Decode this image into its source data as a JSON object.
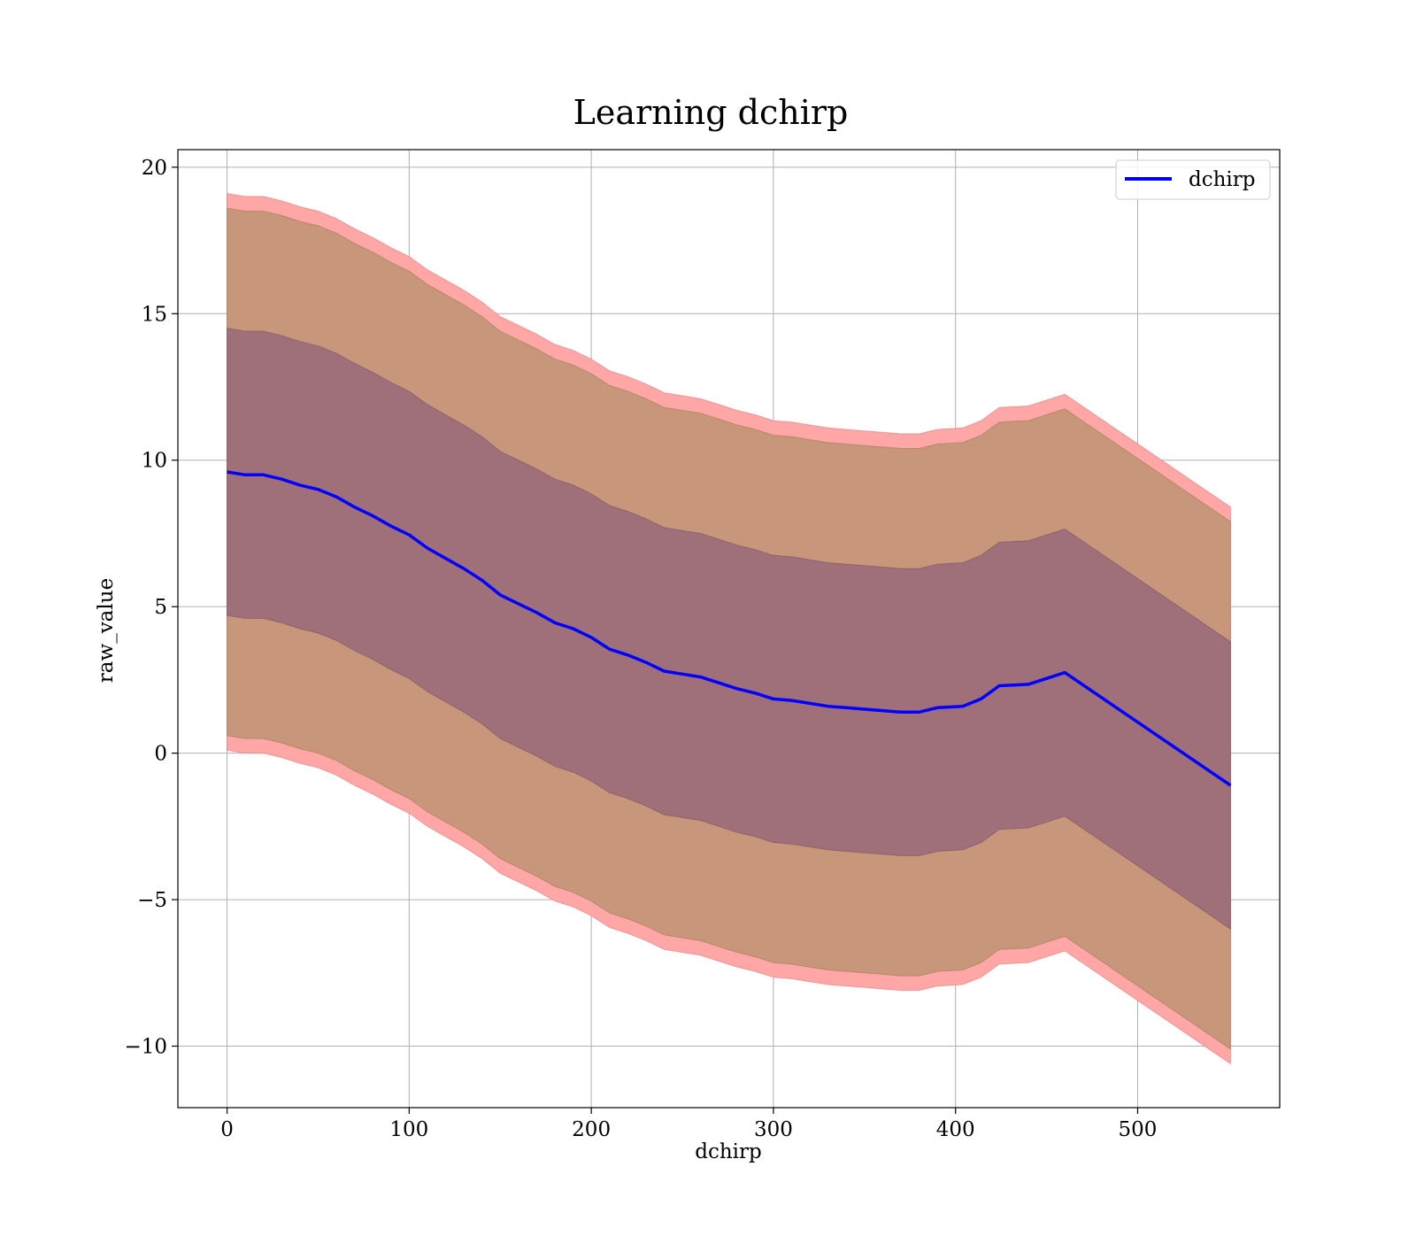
{
  "chart_data": {
    "type": "line",
    "title": "Learning dchirp",
    "xlabel": "dchirp",
    "ylabel": "raw_value",
    "xlim": [
      -27,
      578
    ],
    "ylim": [
      -12.1,
      20.6
    ],
    "x_ticks": [
      0,
      100,
      200,
      300,
      400,
      500
    ],
    "x_tick_labels": [
      "0",
      "100",
      "200",
      "300",
      "400",
      "500"
    ],
    "y_ticks": [
      -10,
      -5,
      0,
      5,
      10,
      15,
      20
    ],
    "y_tick_labels": [
      "−10",
      "−5",
      "0",
      "5",
      "10",
      "15",
      "20"
    ],
    "grid": true,
    "legend": {
      "position": "top-right",
      "entries": [
        "dchirp"
      ]
    },
    "colors": {
      "line": "#0000ff",
      "band_outer": "#ffa6a6",
      "band_mid": "#c8967a",
      "band_inner": "#a0707a"
    },
    "x": [
      0,
      10,
      20,
      30,
      40,
      50,
      60,
      70,
      80,
      90,
      100,
      110,
      120,
      130,
      140,
      150,
      160,
      170,
      180,
      190,
      200,
      210,
      220,
      230,
      240,
      250,
      260,
      270,
      280,
      290,
      300,
      310,
      320,
      330,
      340,
      350,
      360,
      370,
      380,
      390,
      404,
      414,
      424,
      440,
      460,
      551
    ],
    "series": [
      {
        "name": "dchirp",
        "values": [
          9.6,
          9.5,
          9.5,
          9.35,
          9.15,
          9.0,
          8.75,
          8.4,
          8.1,
          7.75,
          7.45,
          7.0,
          6.65,
          6.3,
          5.9,
          5.4,
          5.1,
          4.8,
          4.45,
          4.25,
          3.95,
          3.55,
          3.35,
          3.1,
          2.8,
          2.7,
          2.6,
          2.4,
          2.2,
          2.05,
          1.85,
          1.8,
          1.7,
          1.6,
          1.55,
          1.5,
          1.45,
          1.4,
          1.4,
          1.55,
          1.6,
          1.85,
          2.3,
          2.35,
          2.75,
          -1.1
        ]
      }
    ],
    "bands": [
      {
        "upper": [
          19.1,
          19.0,
          19.0,
          18.85,
          18.65,
          18.5,
          18.25,
          17.9,
          17.6,
          17.25,
          16.95,
          16.5,
          16.15,
          15.8,
          15.4,
          14.9,
          14.6,
          14.3,
          13.95,
          13.75,
          13.45,
          13.05,
          12.85,
          12.6,
          12.3,
          12.2,
          12.1,
          11.9,
          11.7,
          11.55,
          11.35,
          11.3,
          11.2,
          11.1,
          11.05,
          11.0,
          10.95,
          10.9,
          10.9,
          11.05,
          11.1,
          11.35,
          11.8,
          11.85,
          12.25,
          8.4
        ],
        "lower": [
          0.1,
          0.0,
          0.0,
          -0.15,
          -0.35,
          -0.5,
          -0.75,
          -1.1,
          -1.4,
          -1.75,
          -2.05,
          -2.5,
          -2.85,
          -3.2,
          -3.6,
          -4.1,
          -4.4,
          -4.7,
          -5.05,
          -5.25,
          -5.55,
          -5.95,
          -6.15,
          -6.4,
          -6.7,
          -6.8,
          -6.9,
          -7.1,
          -7.3,
          -7.45,
          -7.65,
          -7.7,
          -7.8,
          -7.9,
          -7.95,
          -8.0,
          -8.05,
          -8.1,
          -8.1,
          -7.95,
          -7.9,
          -7.65,
          -7.2,
          -7.15,
          -6.75,
          -10.6
        ]
      },
      {
        "upper": [
          18.6,
          18.5,
          18.5,
          18.35,
          18.15,
          18.0,
          17.75,
          17.4,
          17.1,
          16.75,
          16.45,
          16.0,
          15.65,
          15.3,
          14.9,
          14.4,
          14.1,
          13.8,
          13.45,
          13.25,
          12.95,
          12.55,
          12.35,
          12.1,
          11.8,
          11.7,
          11.6,
          11.4,
          11.2,
          11.05,
          10.85,
          10.8,
          10.7,
          10.6,
          10.55,
          10.5,
          10.45,
          10.4,
          10.4,
          10.55,
          10.6,
          10.85,
          11.3,
          11.35,
          11.75,
          7.9
        ],
        "lower": [
          0.6,
          0.5,
          0.5,
          0.35,
          0.15,
          0.0,
          -0.25,
          -0.6,
          -0.9,
          -1.25,
          -1.55,
          -2.0,
          -2.35,
          -2.7,
          -3.1,
          -3.6,
          -3.9,
          -4.2,
          -4.55,
          -4.75,
          -5.05,
          -5.45,
          -5.65,
          -5.9,
          -6.2,
          -6.3,
          -6.4,
          -6.6,
          -6.8,
          -6.95,
          -7.15,
          -7.2,
          -7.3,
          -7.4,
          -7.45,
          -7.5,
          -7.55,
          -7.6,
          -7.6,
          -7.45,
          -7.4,
          -7.15,
          -6.7,
          -6.65,
          -6.25,
          -10.1
        ]
      },
      {
        "upper": [
          14.5,
          14.4,
          14.4,
          14.25,
          14.05,
          13.9,
          13.65,
          13.3,
          13.0,
          12.65,
          12.35,
          11.9,
          11.55,
          11.2,
          10.8,
          10.3,
          10.0,
          9.7,
          9.35,
          9.15,
          8.85,
          8.45,
          8.25,
          8.0,
          7.7,
          7.6,
          7.5,
          7.3,
          7.1,
          6.95,
          6.75,
          6.7,
          6.6,
          6.5,
          6.45,
          6.4,
          6.35,
          6.3,
          6.3,
          6.45,
          6.5,
          6.75,
          7.2,
          7.25,
          7.65,
          3.8
        ],
        "lower": [
          4.7,
          4.6,
          4.6,
          4.45,
          4.25,
          4.1,
          3.85,
          3.5,
          3.2,
          2.85,
          2.55,
          2.1,
          1.75,
          1.4,
          1.0,
          0.5,
          0.2,
          -0.1,
          -0.45,
          -0.65,
          -0.95,
          -1.35,
          -1.55,
          -1.8,
          -2.1,
          -2.2,
          -2.3,
          -2.5,
          -2.7,
          -2.85,
          -3.05,
          -3.1,
          -3.2,
          -3.3,
          -3.35,
          -3.4,
          -3.45,
          -3.5,
          -3.5,
          -3.35,
          -3.3,
          -3.05,
          -2.6,
          -2.55,
          -2.15,
          -6.0
        ]
      }
    ]
  }
}
